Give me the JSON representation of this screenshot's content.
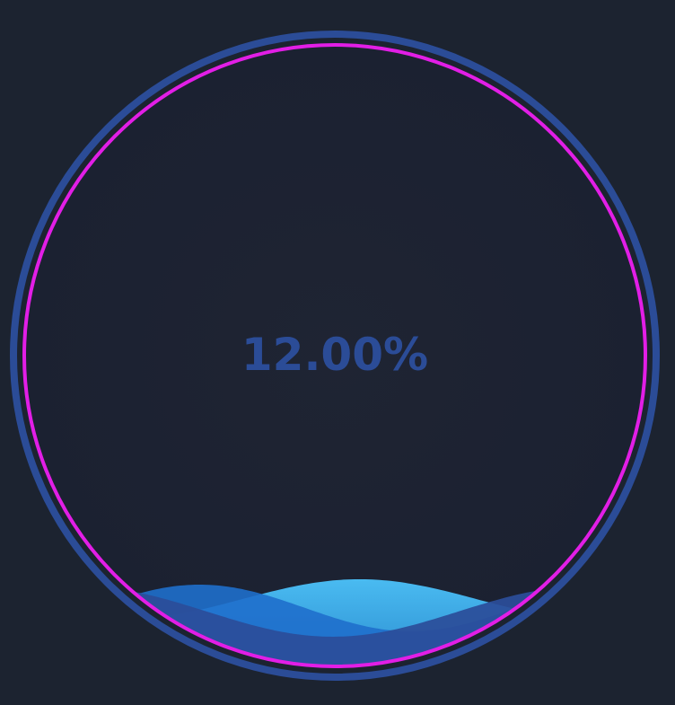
{
  "chart_data": {
    "type": "liquidfill",
    "value": 0.12,
    "label": "12.00%",
    "title": "",
    "colors": {
      "background": "#1c2330",
      "outer_border": "#2b4c97",
      "inner_border": "#e21ee6",
      "label": "#2b4c97",
      "wave_front": "#2b4d9a",
      "wave_middle": "#1f6fcc",
      "wave_back": "#45b9f5"
    }
  }
}
